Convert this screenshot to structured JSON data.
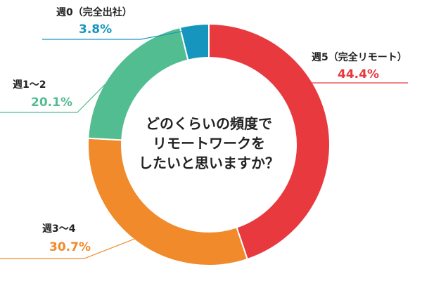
{
  "chart_data": {
    "type": "pie",
    "title_lines": [
      "どのくらいの頻度で",
      "リモートワークを",
      "したいと思いますか？"
    ],
    "slices": [
      {
        "label": "週5（完全リモート）",
        "value": 44.4,
        "value_label": "44.4%",
        "color": "#e8393f"
      },
      {
        "label": "週3〜4",
        "value": 30.7,
        "value_label": "30.7%",
        "color": "#f08a2b"
      },
      {
        "label": "週1〜2",
        "value": 20.1,
        "value_label": "20.1%",
        "color": "#52bd91"
      },
      {
        "label": "週0（完全出社）",
        "value": 3.8,
        "value_label": "3.8%",
        "color": "#1696be"
      }
    ]
  }
}
